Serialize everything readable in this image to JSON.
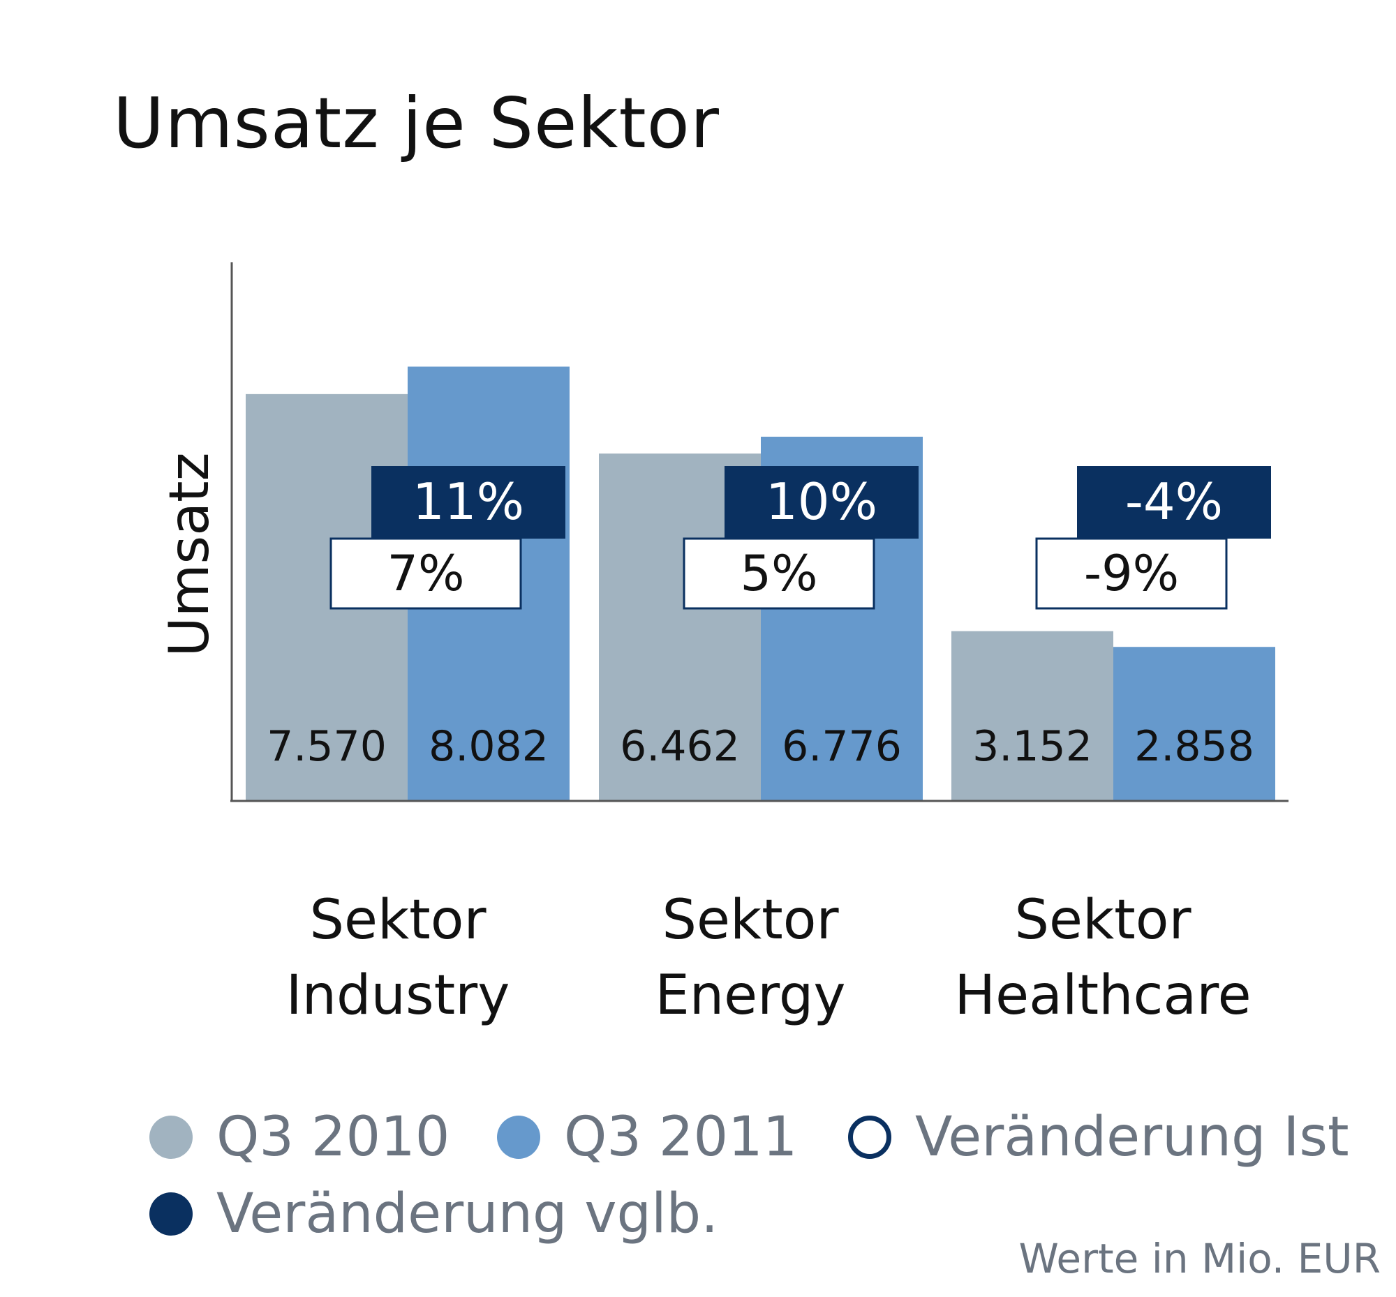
{
  "colors": {
    "q3_2010": "#a1b3c0",
    "q3_2011": "#6699cc",
    "change_vglb": "#0a3060",
    "change_ist_border": "#0a3060",
    "axis": "#555555"
  },
  "chart_data": {
    "type": "bar",
    "title": "Umsatz je Sektor",
    "ylabel": "Umsatz",
    "xlabel": "",
    "ylim": [
      0,
      10000
    ],
    "grid": false,
    "legend_position": "bottom",
    "categories": [
      {
        "line1": "Sektor",
        "line2": "Industry"
      },
      {
        "line1": "Sektor",
        "line2": "Energy"
      },
      {
        "line1": "Sektor",
        "line2": "Healthcare"
      }
    ],
    "series": [
      {
        "name": "Q3 2010",
        "values": [
          7570,
          6462,
          3152
        ],
        "labels": [
          "7.570",
          "6.462",
          "3.152"
        ]
      },
      {
        "name": "Q3 2011",
        "values": [
          8082,
          6776,
          2858
        ],
        "labels": [
          "8.082",
          "6.776",
          "2.858"
        ]
      }
    ],
    "changes_vglb": [
      "11%",
      "10%",
      "-4%"
    ],
    "changes_ist": [
      "7%",
      "5%",
      "-9%"
    ],
    "legend": [
      "Q3 2010",
      "Q3 2011",
      "Veränderung Ist",
      "Veränderung vglb."
    ],
    "note": "Werte in Mio. EUR"
  }
}
